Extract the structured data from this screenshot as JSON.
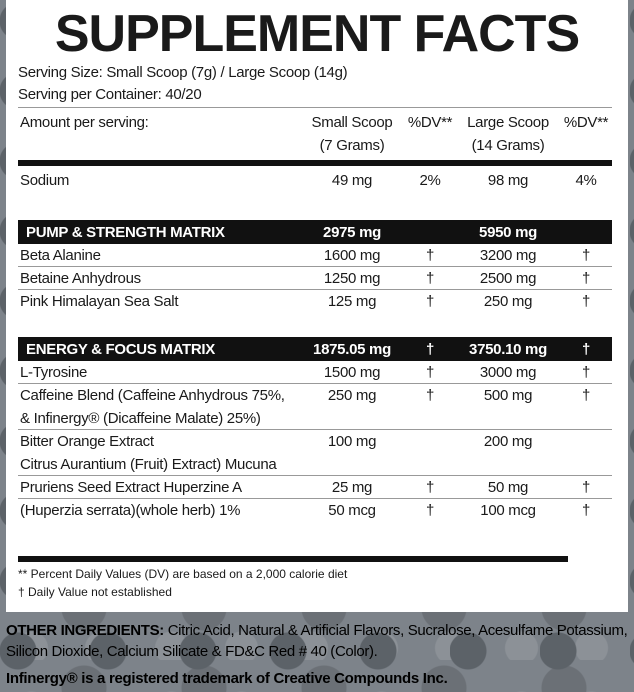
{
  "title": "SUPPLEMENT FACTS",
  "serving_size": "Serving Size: Small Scoop (7g) / Large Scoop (14g)",
  "servings": "Serving per Container: 40/20",
  "header": {
    "amount": "Amount per serving:",
    "small": [
      "Small Scoop",
      "(7 Grams)"
    ],
    "dv": "%DV**",
    "large": [
      "Large Scoop",
      "(14 Grams)"
    ],
    "dv2": "%DV**"
  },
  "sodium": {
    "name": [
      "Sodium"
    ],
    "small": "49 mg",
    "dv": "2%",
    "large": "98 mg",
    "dv2": "4%"
  },
  "sections": [
    {
      "name": "PUMP & STRENGTH MATRIX",
      "small": "2975 mg",
      "large": "5950 mg",
      "rows": [
        {
          "name": [
            "Beta Alanine"
          ],
          "small": "1600 mg",
          "dv": "†",
          "large": "3200 mg",
          "dv2": "†"
        },
        {
          "name": [
            "Betaine Anhydrous"
          ],
          "small": "1250 mg",
          "dv": "†",
          "large": "2500 mg",
          "dv2": "†"
        },
        {
          "name": [
            "Pink Himalayan Sea Salt"
          ],
          "small": "125 mg",
          "dv": "†",
          "large": "250 mg",
          "dv2": "†"
        }
      ]
    },
    {
      "name": "ENERGY & FOCUS MATRIX",
      "small": "1875.05 mg",
      "dv": "†",
      "large": "3750.10 mg",
      "dv2": "†",
      "rows": [
        {
          "name": [
            "L-Tyrosine"
          ],
          "small": "1500 mg",
          "dv": "†",
          "large": "3000 mg",
          "dv2": "†"
        },
        {
          "name": [
            "Caffeine Blend (Caffeine Anhydrous 75%,",
            "& Infinergy® (Dicaffeine Malate) 25%)"
          ],
          "small": "250 mg",
          "dv": "†",
          "large": "500 mg",
          "dv2": "†"
        },
        {
          "name": [
            "Bitter Orange Extract",
            "Citrus Aurantium (Fruit) Extract) Mucuna"
          ],
          "small": "100 mg",
          "large": "200 mg"
        },
        {
          "name": [
            "Pruriens Seed Extract Huperzine A"
          ],
          "small": "25 mg",
          "dv": "†",
          "large": "50 mg",
          "dv2": "†"
        },
        {
          "name": [
            "(Huperzia serrata)(whole herb) 1%"
          ],
          "small": "50 mcg",
          "dv": "†",
          "large": "100 mcg",
          "dv2": "†"
        }
      ]
    }
  ],
  "footnotes": [
    "** Percent Daily Values (DV) are based on a 2,000 calorie diet",
    "† Daily Value not established"
  ],
  "other_ingredients": {
    "label": "OTHER INGREDIENTS:",
    "text": "Citric Acid, Natural & Artificial Flavors, Sucralose, Acesulfame Potassium, Silicon Dioxide, Calcium Silicate & FD&C Red # 40 (Color)."
  },
  "trademark": "Infinergy® is a registered trademark of Creative Compounds Inc."
}
